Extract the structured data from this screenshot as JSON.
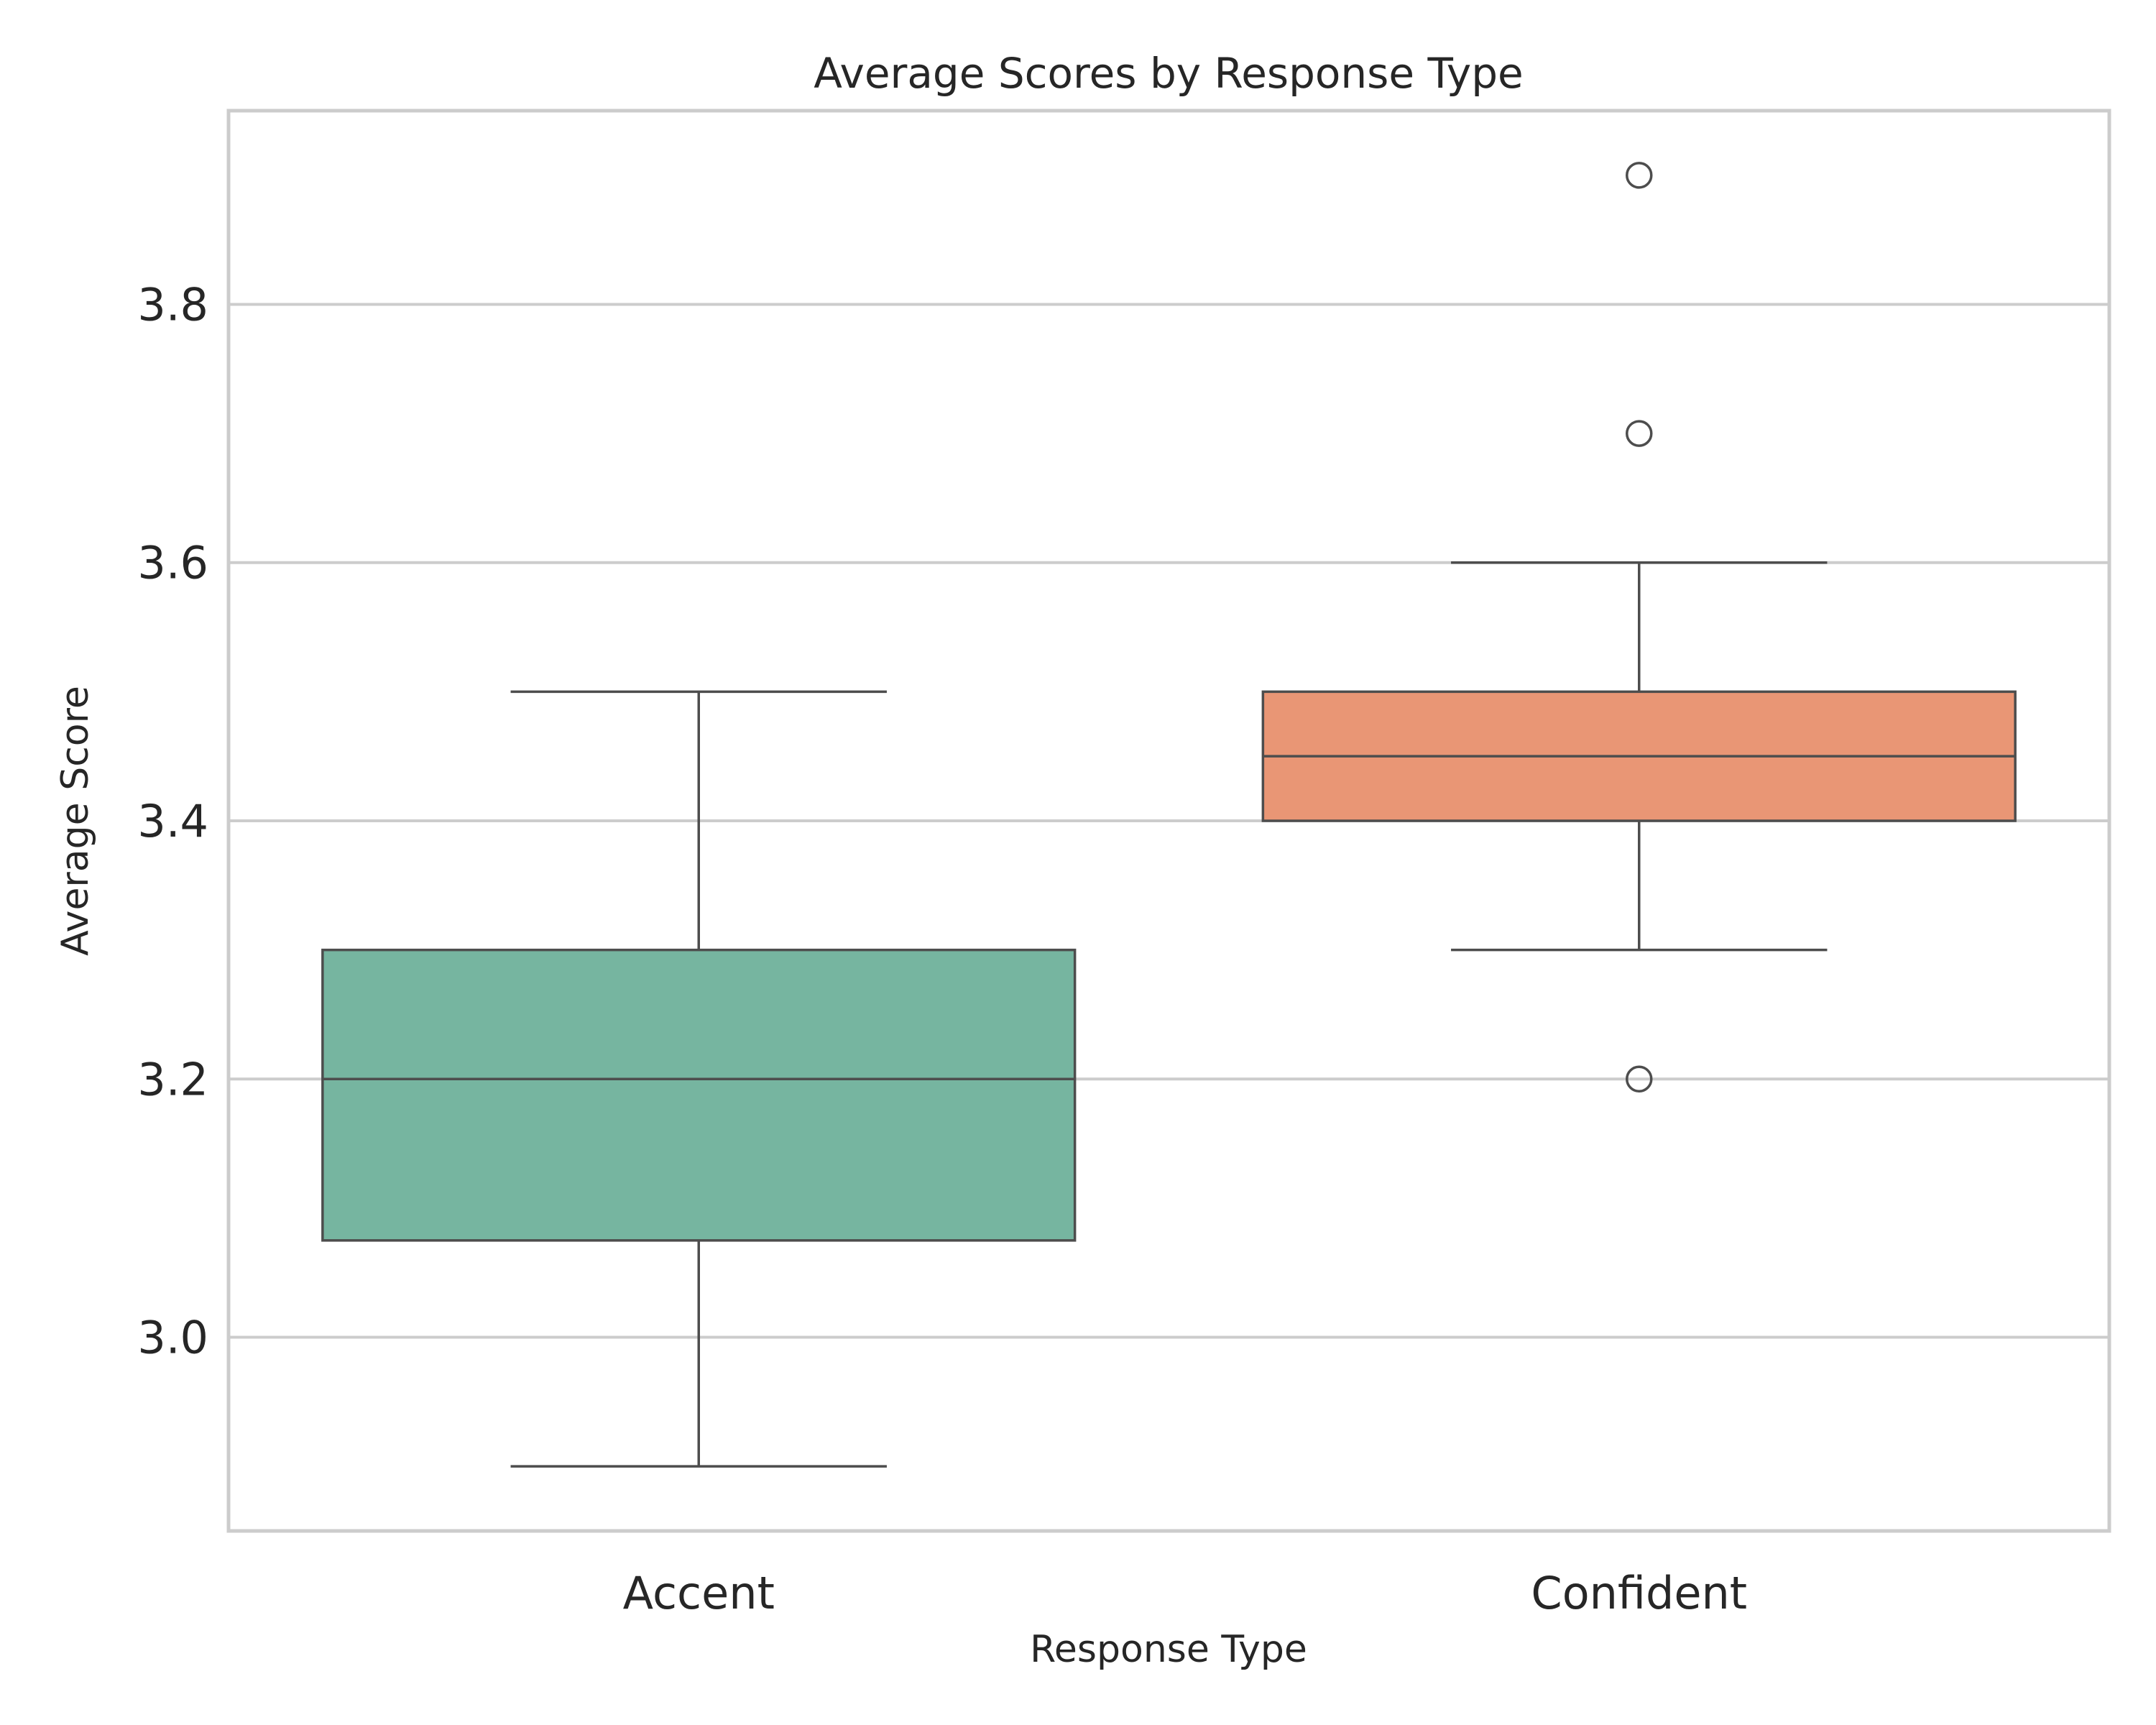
{
  "chart_data": {
    "type": "box",
    "title": "Average Scores by Response Type",
    "xlabel": "Response Type",
    "ylabel": "Average Score",
    "ylim": [
      2.85,
      3.95
    ],
    "yticks": [
      "3.0",
      "3.2",
      "3.4",
      "3.6",
      "3.8"
    ],
    "ytick_values": [
      3.0,
      3.2,
      3.4,
      3.6,
      3.8
    ],
    "grid": "y",
    "categories": [
      "Accent",
      "Confident"
    ],
    "boxes": [
      {
        "category": "Accent",
        "color": "#76b5a0",
        "whisker_low": 2.9,
        "q1": 3.075,
        "median": 3.2,
        "q3": 3.3,
        "whisker_high": 3.5,
        "outliers": []
      },
      {
        "category": "Confident",
        "color": "#e99675",
        "whisker_low": 3.3,
        "q1": 3.4,
        "median": 3.45,
        "q3": 3.5,
        "whisker_high": 3.6,
        "outliers": [
          3.9,
          3.7,
          3.2
        ]
      }
    ],
    "colors": {
      "grid": "#cccccc",
      "frame": "#cccccc",
      "box_edge": "#4d4d4d"
    }
  }
}
